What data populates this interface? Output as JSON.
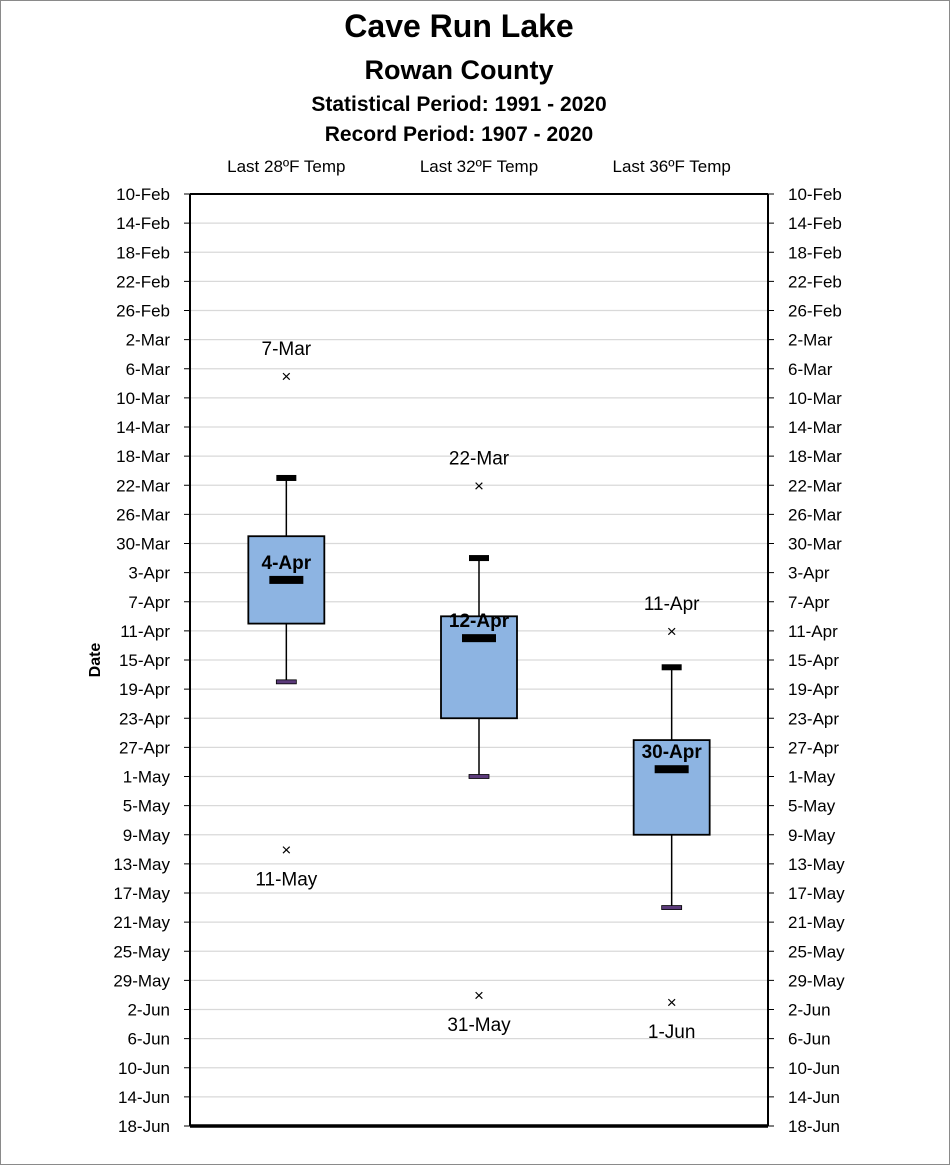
{
  "header": {
    "title": "Cave Run Lake",
    "subtitle": "Rowan County",
    "statistical_period": "Statistical Period: 1991 - 2020",
    "record_period": "Record Period: 1907 - 2020"
  },
  "chart_data": {
    "type": "box",
    "ylabel": "Date",
    "y_axis_reversed": true,
    "ylim": [
      "10-Feb",
      "18-Jun"
    ],
    "y_tick_labels": [
      "10-Feb",
      "14-Feb",
      "18-Feb",
      "22-Feb",
      "26-Feb",
      "2-Mar",
      "6-Mar",
      "10-Mar",
      "14-Mar",
      "18-Mar",
      "22-Mar",
      "26-Mar",
      "30-Mar",
      "3-Apr",
      "7-Apr",
      "11-Apr",
      "15-Apr",
      "19-Apr",
      "23-Apr",
      "27-Apr",
      "1-May",
      "5-May",
      "9-May",
      "13-May",
      "17-May",
      "21-May",
      "25-May",
      "29-May",
      "2-Jun",
      "6-Jun",
      "10-Jun",
      "14-Jun",
      "18-Jun"
    ],
    "gridlines": "horizontal",
    "box_color": "#8db4e2",
    "categories": [
      "Last 28ºF Temp",
      "Last 32ºF Temp",
      "Last 36ºF Temp"
    ],
    "boxes": [
      {
        "category": "Last 28ºF Temp",
        "median": "4-Apr",
        "median_label": "4-Apr",
        "q1": "29-Mar",
        "q3": "10-Apr",
        "whisker_low": "21-Mar",
        "whisker_high": "18-Apr",
        "record_early": "7-Mar",
        "record_early_label": "7-Mar",
        "record_late": "11-May",
        "record_late_label": "11-May"
      },
      {
        "category": "Last 32ºF Temp",
        "median": "12-Apr",
        "median_label": "12-Apr",
        "q1": "9-Apr",
        "q3": "23-Apr",
        "whisker_low": "1-Apr",
        "whisker_high": "1-May",
        "record_early": "22-Mar",
        "record_early_label": "22-Mar",
        "record_late": "31-May",
        "record_late_label": "31-May"
      },
      {
        "category": "Last 36ºF Temp",
        "median": "30-Apr",
        "median_label": "30-Apr",
        "q1": "26-Apr",
        "q3": "9-May",
        "whisker_low": "16-Apr",
        "whisker_high": "19-May",
        "record_early": "11-Apr",
        "record_early_label": "11-Apr",
        "record_late": "1-Jun",
        "record_late_label": "1-Jun"
      }
    ]
  }
}
